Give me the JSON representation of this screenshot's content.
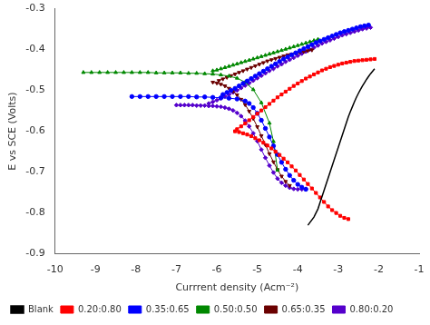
{
  "chart_data": {
    "type": "line",
    "xlabel": "Currrent density (Acm⁻²)",
    "ylabel": "E vs SCE (Volts)",
    "xlim": [
      -10,
      -1
    ],
    "ylim": [
      -0.9,
      -0.3
    ],
    "xticks": [
      -10,
      -9,
      -8,
      -7,
      -6,
      -5,
      -4,
      -3,
      -2,
      -1
    ],
    "yticks": [
      -0.9,
      -0.8,
      -0.7,
      -0.6,
      -0.5,
      -0.4,
      -0.3
    ],
    "grid": false,
    "legend": "lower left",
    "series": [
      {
        "name": "Blank",
        "color": "#000000",
        "x": [
          -3.75,
          -3.6,
          -3.5,
          -3.45,
          -3.4,
          -3.35,
          -3.3,
          -3.25,
          -3.2,
          -3.15,
          -3.1,
          -3.05,
          -3.0,
          -2.95,
          -2.9,
          -2.85,
          -2.8,
          -2.75,
          -2.7,
          -2.65,
          -2.6,
          -2.55,
          -2.5,
          -2.45,
          -2.4,
          -2.35,
          -2.3,
          -2.25,
          -2.2,
          -2.15,
          -2.1
        ],
        "values": [
          -0.83,
          -0.81,
          -0.79,
          -0.775,
          -0.76,
          -0.745,
          -0.73,
          -0.715,
          -0.7,
          -0.685,
          -0.67,
          -0.655,
          -0.64,
          -0.625,
          -0.61,
          -0.595,
          -0.58,
          -0.565,
          -0.552,
          -0.54,
          -0.528,
          -0.517,
          -0.507,
          -0.498,
          -0.489,
          -0.481,
          -0.473,
          -0.466,
          -0.459,
          -0.453,
          -0.447
        ]
      },
      {
        "name": "0.20:0.80",
        "color": "#ff0000",
        "marker": "square",
        "x": [
          -5.55,
          -5.45,
          -5.35,
          -5.25,
          -5.15,
          -5.05,
          -4.95,
          -4.85,
          -4.75,
          -4.65,
          -4.55,
          -4.45,
          -4.35,
          -4.25,
          -4.15,
          -4.05,
          -3.95,
          -3.85,
          -3.75,
          -3.65,
          -3.55,
          -3.45,
          -3.35,
          -3.25,
          -3.15,
          -3.05,
          -2.95,
          -2.85,
          -2.75
        ],
        "values": [
          -0.6,
          -0.602,
          -0.605,
          -0.608,
          -0.612,
          -0.617,
          -0.622,
          -0.628,
          -0.635,
          -0.642,
          -0.65,
          -0.658,
          -0.667,
          -0.676,
          -0.686,
          -0.696,
          -0.707,
          -0.718,
          -0.729,
          -0.74,
          -0.751,
          -0.762,
          -0.773,
          -0.784,
          -0.793,
          -0.8,
          -0.807,
          -0.812,
          -0.815
        ]
      },
      {
        "color": "#ff0000",
        "marker": "square",
        "x": [
          -5.5,
          -5.4,
          -5.3,
          -5.2,
          -5.1,
          -5.0,
          -4.9,
          -4.8,
          -4.7,
          -4.6,
          -4.5,
          -4.4,
          -4.3,
          -4.2,
          -4.1,
          -4.0,
          -3.9,
          -3.8,
          -3.7,
          -3.6,
          -3.5,
          -3.4,
          -3.3,
          -3.2,
          -3.1,
          -3.0,
          -2.9,
          -2.8,
          -2.7,
          -2.6,
          -2.5,
          -2.4,
          -2.3,
          -2.2,
          -2.1
        ],
        "values": [
          -0.595,
          -0.588,
          -0.581,
          -0.573,
          -0.565,
          -0.557,
          -0.549,
          -0.541,
          -0.533,
          -0.525,
          -0.517,
          -0.51,
          -0.503,
          -0.496,
          -0.489,
          -0.483,
          -0.477,
          -0.471,
          -0.466,
          -0.461,
          -0.456,
          -0.451,
          -0.447,
          -0.443,
          -0.44,
          -0.437,
          -0.434,
          -0.432,
          -0.43,
          -0.428,
          -0.427,
          -0.426,
          -0.425,
          -0.424,
          -0.423
        ]
      },
      {
        "name": "0.35:0.65",
        "color": "#0000ff",
        "marker": "circle",
        "x": [
          -8.1,
          -7.9,
          -7.7,
          -7.5,
          -7.3,
          -7.1,
          -6.9,
          -6.7,
          -6.5,
          -6.3,
          -6.1,
          -5.9,
          -5.7,
          -5.5,
          -5.3,
          -5.2,
          -5.1,
          -5.0,
          -4.9,
          -4.8,
          -4.7,
          -4.6,
          -4.5,
          -4.4,
          -4.3,
          -4.2,
          -4.1,
          -4.0,
          -3.9,
          -3.8
        ],
        "values": [
          -0.515,
          -0.515,
          -0.515,
          -0.515,
          -0.515,
          -0.515,
          -0.515,
          -0.515,
          -0.516,
          -0.516,
          -0.517,
          -0.518,
          -0.519,
          -0.521,
          -0.526,
          -0.532,
          -0.542,
          -0.556,
          -0.573,
          -0.593,
          -0.614,
          -0.636,
          -0.657,
          -0.676,
          -0.693,
          -0.708,
          -0.72,
          -0.73,
          -0.737,
          -0.742
        ]
      },
      {
        "color": "#0000ff",
        "marker": "circle",
        "x": [
          -5.85,
          -5.75,
          -5.65,
          -5.55,
          -5.45,
          -5.35,
          -5.25,
          -5.15,
          -5.05,
          -4.95,
          -4.85,
          -4.75,
          -4.65,
          -4.55,
          -4.45,
          -4.35,
          -4.25,
          -4.15,
          -4.05,
          -3.95,
          -3.85,
          -3.75,
          -3.65,
          -3.55,
          -3.45,
          -3.35,
          -3.25,
          -3.15,
          -3.05,
          -2.95,
          -2.85,
          -2.75,
          -2.65,
          -2.55,
          -2.45,
          -2.35,
          -2.25
        ],
        "values": [
          -0.51,
          -0.505,
          -0.5,
          -0.495,
          -0.489,
          -0.483,
          -0.477,
          -0.471,
          -0.465,
          -0.459,
          -0.453,
          -0.447,
          -0.441,
          -0.435,
          -0.429,
          -0.423,
          -0.418,
          -0.413,
          -0.408,
          -0.403,
          -0.398,
          -0.393,
          -0.388,
          -0.383,
          -0.379,
          -0.375,
          -0.371,
          -0.367,
          -0.363,
          -0.359,
          -0.356,
          -0.353,
          -0.35,
          -0.347,
          -0.344,
          -0.342,
          -0.34
        ]
      },
      {
        "name": "0.50:0.50",
        "color": "#008800",
        "marker": "triangle-up",
        "x": [
          -9.3,
          -9.1,
          -8.9,
          -8.7,
          -8.5,
          -8.3,
          -8.1,
          -7.9,
          -7.7,
          -7.5,
          -7.3,
          -7.1,
          -6.9,
          -6.7,
          -6.5,
          -6.3,
          -6.1,
          -5.9,
          -5.7,
          -5.5,
          -5.3,
          -5.1,
          -4.9,
          -4.7,
          -4.6,
          -4.5
        ],
        "values": [
          -0.456,
          -0.456,
          -0.456,
          -0.456,
          -0.456,
          -0.456,
          -0.456,
          -0.456,
          -0.456,
          -0.457,
          -0.457,
          -0.457,
          -0.457,
          -0.458,
          -0.458,
          -0.459,
          -0.46,
          -0.462,
          -0.465,
          -0.47,
          -0.48,
          -0.498,
          -0.53,
          -0.58,
          -0.625,
          -0.695
        ]
      },
      {
        "color": "#008800",
        "marker": "triangle-up",
        "x": [
          -6.1,
          -6.0,
          -5.9,
          -5.8,
          -5.7,
          -5.6,
          -5.5,
          -5.4,
          -5.3,
          -5.2,
          -5.1,
          -5.0,
          -4.9,
          -4.8,
          -4.7,
          -4.6,
          -4.5,
          -4.4,
          -4.3,
          -4.2,
          -4.1,
          -4.0,
          -3.9,
          -3.8,
          -3.7,
          -3.6,
          -3.5
        ],
        "values": [
          -0.452,
          -0.45,
          -0.447,
          -0.444,
          -0.441,
          -0.438,
          -0.435,
          -0.432,
          -0.429,
          -0.426,
          -0.423,
          -0.42,
          -0.417,
          -0.414,
          -0.411,
          -0.408,
          -0.405,
          -0.402,
          -0.399,
          -0.396,
          -0.393,
          -0.39,
          -0.387,
          -0.384,
          -0.381,
          -0.378,
          -0.375
        ]
      },
      {
        "name": "0.65:0.35",
        "color": "#6b0000",
        "marker": "triangle-down",
        "x": [
          -6.1,
          -6.0,
          -5.9,
          -5.8,
          -5.7,
          -5.6,
          -5.5,
          -5.4,
          -5.3,
          -5.2,
          -5.1,
          -5.0,
          -4.9,
          -4.8,
          -4.7,
          -4.6,
          -4.5,
          -4.4,
          -4.3,
          -4.2
        ],
        "values": [
          -0.48,
          -0.482,
          -0.485,
          -0.489,
          -0.495,
          -0.502,
          -0.511,
          -0.522,
          -0.535,
          -0.551,
          -0.569,
          -0.589,
          -0.611,
          -0.633,
          -0.655,
          -0.675,
          -0.694,
          -0.71,
          -0.723,
          -0.733
        ]
      },
      {
        "color": "#6b0000",
        "marker": "triangle-down",
        "x": [
          -5.95,
          -5.85,
          -5.75,
          -5.65,
          -5.55,
          -5.45,
          -5.35,
          -5.25,
          -5.15,
          -5.05,
          -4.95,
          -4.85,
          -4.75,
          -4.65,
          -4.55,
          -4.45,
          -4.35,
          -4.25,
          -4.15,
          -4.05,
          -3.95,
          -3.85,
          -3.75,
          -3.65
        ],
        "values": [
          -0.476,
          -0.472,
          -0.468,
          -0.464,
          -0.46,
          -0.456,
          -0.452,
          -0.448,
          -0.444,
          -0.44,
          -0.436,
          -0.432,
          -0.428,
          -0.425,
          -0.422,
          -0.419,
          -0.416,
          -0.413,
          -0.411,
          -0.409,
          -0.407,
          -0.405,
          -0.403,
          -0.401
        ]
      },
      {
        "name": "0.80:0.20",
        "color": "#5500cc",
        "marker": "diamond",
        "x": [
          -7.0,
          -6.9,
          -6.8,
          -6.7,
          -6.6,
          -6.5,
          -6.4,
          -6.3,
          -6.2,
          -6.1,
          -6.0,
          -5.9,
          -5.8,
          -5.7,
          -5.6,
          -5.5,
          -5.4,
          -5.3,
          -5.2,
          -5.1,
          -5.0,
          -4.9,
          -4.8,
          -4.7,
          -4.6,
          -4.5,
          -4.4,
          -4.3,
          -4.2,
          -4.1,
          -4.0,
          -3.9,
          -3.8
        ],
        "values": [
          -0.536,
          -0.536,
          -0.536,
          -0.536,
          -0.536,
          -0.537,
          -0.537,
          -0.537,
          -0.538,
          -0.538,
          -0.539,
          -0.54,
          -0.542,
          -0.545,
          -0.549,
          -0.555,
          -0.563,
          -0.574,
          -0.588,
          -0.605,
          -0.624,
          -0.645,
          -0.665,
          -0.684,
          -0.701,
          -0.716,
          -0.726,
          -0.733,
          -0.738,
          -0.741,
          -0.742,
          -0.742,
          -0.741
        ]
      },
      {
        "color": "#5500cc",
        "marker": "diamond",
        "x": [
          -6.2,
          -6.1,
          -6.0,
          -5.9,
          -5.8,
          -5.7,
          -5.6,
          -5.5,
          -5.4,
          -5.3,
          -5.2,
          -5.1,
          -5.0,
          -4.9,
          -4.8,
          -4.7,
          -4.6,
          -4.5,
          -4.4,
          -4.3,
          -4.2,
          -4.1,
          -4.0,
          -3.9,
          -3.8,
          -3.7,
          -3.6,
          -3.5,
          -3.4,
          -3.3,
          -3.2,
          -3.1,
          -3.0,
          -2.9,
          -2.8,
          -2.7,
          -2.6,
          -2.5,
          -2.4,
          -2.3,
          -2.2
        ],
        "values": [
          -0.532,
          -0.528,
          -0.524,
          -0.52,
          -0.515,
          -0.51,
          -0.505,
          -0.5,
          -0.494,
          -0.488,
          -0.482,
          -0.476,
          -0.47,
          -0.464,
          -0.458,
          -0.452,
          -0.447,
          -0.441,
          -0.436,
          -0.43,
          -0.425,
          -0.42,
          -0.415,
          -0.41,
          -0.405,
          -0.4,
          -0.395,
          -0.39,
          -0.385,
          -0.381,
          -0.377,
          -0.373,
          -0.369,
          -0.365,
          -0.362,
          -0.359,
          -0.356,
          -0.353,
          -0.35,
          -0.348,
          -0.346
        ]
      }
    ]
  }
}
